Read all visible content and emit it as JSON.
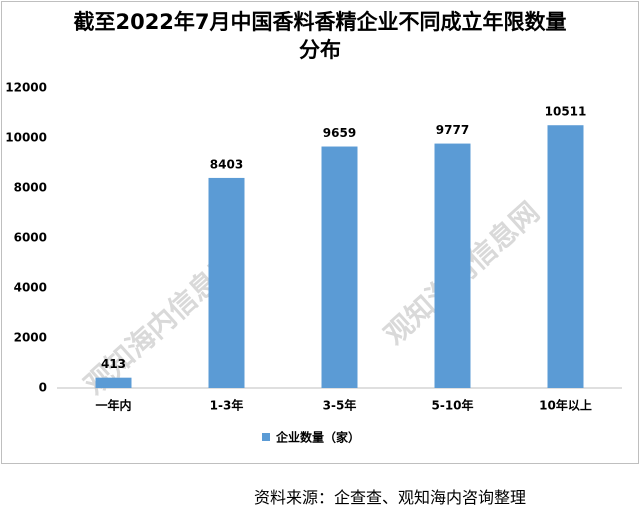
{
  "chart_data": {
    "type": "bar",
    "title": "截至2022年7月中国香料香精企业不同成立年限数量分布",
    "categories": [
      "一年内",
      "1-3年",
      "3-5年",
      "5-10年",
      "10年以上"
    ],
    "series": [
      {
        "name": "企业数量（家）",
        "color": "#5b9bd5",
        "values": [
          413,
          8403,
          9659,
          9777,
          10511
        ]
      }
    ],
    "ylim": [
      0,
      12000
    ],
    "yticks": [
      0,
      2000,
      4000,
      6000,
      8000,
      10000,
      12000
    ],
    "grid": false,
    "legend": "bottom",
    "watermark": "观知海内信息网",
    "source": "资料来源：企查查、观知海内咨询整理"
  }
}
